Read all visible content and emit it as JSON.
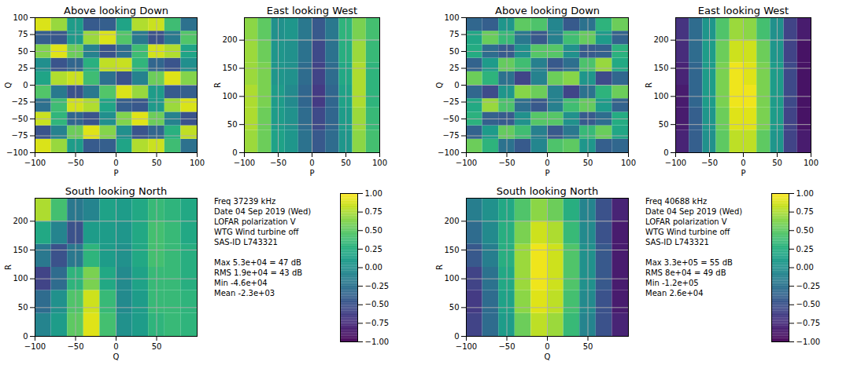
{
  "chart_data": [
    {
      "type": "heatmap",
      "info_lines": [
        "Freq 37239 kHz",
        "Date 04 Sep 2019 (Wed)",
        "LOFAR polarization V",
        "WTG Wind turbine off",
        "SAS-ID L743321"
      ],
      "stats_lines": [
        "Max 5.3e+04 = 47 dB",
        "RMS 1.9e+04 = 43 dB",
        "Min -4.6e+04",
        "Mean -2.3e+03"
      ],
      "colorbar": {
        "range": [
          -1,
          1
        ],
        "ticks": [
          {
            "value": -1,
            "label": "−1.00"
          },
          {
            "value": -0.75,
            "label": "−0.75"
          },
          {
            "value": -0.5,
            "label": "−0.50"
          },
          {
            "value": -0.25,
            "label": "−0.25"
          },
          {
            "value": 0,
            "label": "0.00"
          },
          {
            "value": 0.25,
            "label": "0.25"
          },
          {
            "value": 0.5,
            "label": "0.50"
          },
          {
            "value": 0.75,
            "label": "0.75"
          },
          {
            "value": 1,
            "label": "1.00"
          }
        ]
      },
      "panels": [
        {
          "title": "Above looking Down",
          "x_label": "P",
          "y_label": "Q",
          "xlim": [
            -100,
            100
          ],
          "ylim": [
            -100,
            100
          ],
          "xticks": [
            -100,
            -50,
            0,
            50,
            100
          ],
          "yticks": [
            -100,
            -75,
            -50,
            -25,
            0,
            25,
            50,
            75,
            100
          ],
          "grid": true,
          "cells": {
            "x_edges": [
              -100,
              -80,
              -60,
              -40,
              -20,
              0,
              20,
              40,
              60,
              80,
              100
            ],
            "y_edges": [
              -100,
              -80,
              -60,
              -40,
              -20,
              0,
              20,
              40,
              60,
              80,
              100
            ],
            "values": [
              [
                0.89,
                0.69,
                0.1,
                -0.43,
                -0.4,
                0.17,
                0.76,
                0.84,
                0.38,
                -0.26
              ],
              [
                -0.49,
                -0.12,
                0.55,
                0.9,
                0.63,
                -0.01,
                -0.48,
                -0.35,
                0.27,
                0.81
              ],
              [
                0.83,
                0.31,
                -0.35,
                -0.48,
                -0.01,
                0.62,
                0.9,
                0.55,
                -0.12,
                -0.49
              ],
              [
                -0.27,
                0.38,
                0.86,
                0.76,
                0.17,
                -0.4,
                -0.46,
                0.08,
                0.7,
                0.89
              ],
              [
                0.46,
                -0.19,
                -0.5,
                -0.19,
                0.46,
                0.89,
                0.69,
                0.1,
                -0.43,
                -0.4
              ],
              [
                0.17,
                0.76,
                0.84,
                0.38,
                -0.26,
                -0.49,
                -0.12,
                0.55,
                0.9,
                0.63
              ],
              [
                -0.01,
                -0.48,
                -0.35,
                0.27,
                0.81,
                0.83,
                0.31,
                -0.35,
                -0.48,
                -0.01
              ],
              [
                0.62,
                0.9,
                0.55,
                -0.12,
                -0.49,
                -0.27,
                0.38,
                0.86,
                0.76,
                0.17
              ],
              [
                -0.4,
                -0.46,
                0.08,
                0.7,
                0.89,
                0.46,
                -0.19,
                -0.5,
                -0.19,
                0.46
              ],
              [
                0.89,
                0.69,
                0.1,
                -0.43,
                -0.4,
                0.17,
                0.76,
                0.84,
                0.38,
                -0.26
              ]
            ]
          }
        },
        {
          "title": "East looking West",
          "x_label": "P",
          "y_label": "R",
          "xlim": [
            -100,
            100
          ],
          "ylim": [
            0,
            240
          ],
          "xticks": [
            -100,
            -50,
            0,
            50,
            100
          ],
          "yticks": [
            0,
            50,
            100,
            150,
            200
          ],
          "grid": true,
          "cells": {
            "x_edges": [
              -100,
              -80,
              -60,
              -40,
              -20,
              0,
              20,
              40,
              60,
              80,
              100
            ],
            "y_edges": [
              0,
              40,
              80,
              120,
              160,
              200,
              240
            ],
            "values": [
              [
                0.7,
                0.55,
                0.15,
                0.05,
                -0.25,
                -0.45,
                -0.3,
                0.05,
                0.65,
                0.4
              ],
              [
                0.75,
                0.55,
                0.1,
                0.0,
                -0.3,
                -0.55,
                -0.35,
                0.1,
                0.7,
                0.35
              ],
              [
                0.75,
                0.6,
                0.1,
                -0.05,
                -0.35,
                -0.65,
                -0.35,
                0.15,
                0.75,
                0.3
              ],
              [
                0.7,
                0.6,
                0.05,
                0.0,
                -0.3,
                -0.6,
                -0.3,
                0.2,
                0.75,
                0.3
              ],
              [
                0.7,
                0.55,
                0.05,
                0.0,
                -0.25,
                -0.55,
                -0.25,
                0.25,
                0.7,
                0.35
              ],
              [
                0.65,
                0.5,
                0.0,
                0.05,
                -0.2,
                -0.45,
                -0.2,
                0.3,
                0.6,
                0.4
              ]
            ]
          }
        },
        {
          "title": "South looking North",
          "x_label": "Q",
          "y_label": "R",
          "xlim": [
            -100,
            100
          ],
          "ylim": [
            0,
            240
          ],
          "xticks": [
            -100,
            -50,
            0,
            50
          ],
          "yticks": [
            0,
            50,
            100,
            150,
            200
          ],
          "grid": true,
          "cells": {
            "x_edges": [
              -100,
              -80,
              -60,
              -40,
              -20,
              0,
              20,
              40,
              60,
              80,
              100
            ],
            "y_edges": [
              0,
              40,
              80,
              120,
              160,
              200,
              240
            ],
            "values": [
              [
                -0.1,
                0.1,
                0.5,
                0.9,
                0.4,
                0.0,
                0.1,
                0.3,
                0.35,
                0.3
              ],
              [
                -0.3,
                0.0,
                0.45,
                0.85,
                0.35,
                -0.05,
                0.1,
                0.35,
                0.35,
                0.3
              ],
              [
                -0.6,
                -0.3,
                0.3,
                0.6,
                0.2,
                -0.05,
                0.15,
                0.35,
                0.35,
                0.25
              ],
              [
                -0.2,
                -0.5,
                -0.2,
                0.3,
                0.1,
                0.0,
                0.2,
                0.4,
                0.35,
                0.25
              ],
              [
                0.2,
                -0.1,
                -0.5,
                0.1,
                0.1,
                0.05,
                0.2,
                0.4,
                0.35,
                0.2
              ],
              [
                0.75,
                0.4,
                -0.2,
                -0.1,
                0.15,
                0.1,
                0.2,
                0.35,
                0.3,
                0.2
              ]
            ]
          }
        }
      ]
    },
    {
      "type": "heatmap",
      "info_lines": [
        "Freq 40688 kHz",
        "Date 04 Sep 2019 (Wed)",
        "LOFAR polarization V",
        "WTG Wind turbine off",
        "SAS-ID L743321"
      ],
      "stats_lines": [
        "Max 3.3e+05 = 55 dB",
        "RMS 8e+04 = 49 dB",
        "Min -1.2e+05",
        "Mean 2.6e+04"
      ],
      "colorbar": {
        "range": [
          -1,
          1
        ],
        "ticks": [
          {
            "value": -1,
            "label": "−1.00"
          },
          {
            "value": -0.75,
            "label": "−0.75"
          },
          {
            "value": -0.5,
            "label": "−0.50"
          },
          {
            "value": -0.25,
            "label": "−0.25"
          },
          {
            "value": 0,
            "label": "0.00"
          },
          {
            "value": 0.25,
            "label": "0.25"
          },
          {
            "value": 0.5,
            "label": "0.50"
          },
          {
            "value": 0.75,
            "label": "0.75"
          },
          {
            "value": 1,
            "label": "1.00"
          }
        ]
      },
      "panels": [
        {
          "title": "Above looking Down",
          "x_label": "P",
          "y_label": "Q",
          "xlim": [
            -100,
            100
          ],
          "ylim": [
            -100,
            100
          ],
          "xticks": [
            -100,
            -50,
            0,
            50,
            100
          ],
          "yticks": [
            -100,
            -75,
            -50,
            -25,
            0,
            25,
            50,
            75,
            100
          ],
          "grid": true,
          "cells": {
            "x_edges": [
              -100,
              -80,
              -60,
              -40,
              -20,
              0,
              20,
              40,
              60,
              80,
              100
            ],
            "y_edges": [
              -100,
              -80,
              -60,
              -40,
              -20,
              0,
              20,
              40,
              60,
              80,
              100
            ],
            "values": [
              [
                0.55,
                0.29,
                -0.25,
                -0.44,
                -0.08,
                0.44,
                0.5,
                0.05,
                -0.4,
                -0.34
              ],
              [
                -0.37,
                0.09,
                0.53,
                0.39,
                -0.14,
                -0.45,
                -0.2,
                0.35,
                0.54,
                0.18
              ],
              [
                0.28,
                -0.39,
                -0.43,
                0.0,
                0.47,
                0.47,
                0.0,
                -0.43,
                -0.29,
                0.23
              ],
              [
                0.21,
                0.69,
                0.43,
                -0.28,
                -0.45,
                -0.14,
                0.39,
                0.53,
                0.09,
                -0.37
              ],
              [
                -0.34,
                -0.54,
                0.05,
                0.64,
                0.55,
                -0.11,
                -0.59,
                -0.25,
                0.29,
                0.55
              ],
              [
                0.55,
                0.29,
                -0.25,
                -0.59,
                -0.11,
                0.55,
                0.64,
                0.05,
                -0.54,
                -0.34
              ],
              [
                -0.37,
                0.09,
                0.53,
                0.39,
                -0.14,
                -0.45,
                -0.28,
                0.43,
                0.69,
                0.21
              ],
              [
                0.23,
                -0.29,
                -0.43,
                0.0,
                0.47,
                0.47,
                0.0,
                -0.43,
                -0.39,
                0.28
              ],
              [
                0.18,
                0.54,
                0.35,
                -0.2,
                -0.45,
                -0.14,
                0.39,
                0.53,
                0.09,
                -0.37
              ],
              [
                -0.34,
                -0.4,
                0.05,
                0.5,
                0.44,
                -0.08,
                -0.44,
                -0.25,
                0.29,
                0.55
              ]
            ]
          }
        },
        {
          "title": "East looking West",
          "x_label": "P",
          "y_label": "R",
          "xlim": [
            -100,
            100
          ],
          "ylim": [
            0,
            240
          ],
          "xticks": [
            -100,
            -50,
            0,
            50,
            100
          ],
          "yticks": [
            0,
            50,
            100,
            150,
            200
          ],
          "grid": true,
          "cells": {
            "x_edges": [
              -100,
              -80,
              -60,
              -40,
              -20,
              0,
              20,
              40,
              60,
              80,
              100
            ],
            "y_edges": [
              0,
              40,
              80,
              120,
              160,
              200,
              240
            ],
            "values": [
              [
                -0.8,
                -0.4,
                0.0,
                0.5,
                0.8,
                0.8,
                0.5,
                0.05,
                -0.6,
                -0.85
              ],
              [
                -0.85,
                -0.4,
                0.05,
                0.55,
                0.9,
                0.9,
                0.6,
                0.1,
                -0.6,
                -0.9
              ],
              [
                -0.85,
                -0.35,
                0.1,
                0.6,
                0.95,
                0.95,
                0.6,
                0.1,
                -0.55,
                -0.9
              ],
              [
                -0.8,
                -0.35,
                0.1,
                0.6,
                0.95,
                0.9,
                0.6,
                0.1,
                -0.55,
                -0.9
              ],
              [
                -0.75,
                -0.3,
                0.1,
                0.55,
                0.85,
                0.85,
                0.55,
                0.05,
                -0.6,
                -0.9
              ],
              [
                -0.7,
                -0.3,
                0.05,
                0.45,
                0.7,
                0.65,
                0.4,
                0.0,
                -0.6,
                -0.85
              ]
            ]
          }
        },
        {
          "title": "South looking North",
          "x_label": "Q",
          "y_label": "R",
          "xlim": [
            -100,
            100
          ],
          "ylim": [
            0,
            240
          ],
          "xticks": [
            -100,
            -50,
            0,
            50
          ],
          "yticks": [
            0,
            50,
            100,
            150,
            200
          ],
          "grid": true,
          "cells": {
            "x_edges": [
              -100,
              -80,
              -60,
              -40,
              -20,
              0,
              20,
              40,
              60,
              80,
              100
            ],
            "y_edges": [
              0,
              40,
              80,
              120,
              160,
              200,
              240
            ],
            "values": [
              [
                -0.6,
                -0.3,
                0.1,
                0.55,
                0.8,
                0.7,
                0.35,
                -0.1,
                -0.5,
                -0.8
              ],
              [
                -0.65,
                -0.3,
                0.15,
                0.65,
                0.9,
                0.8,
                0.4,
                -0.05,
                -0.5,
                -0.85
              ],
              [
                -0.6,
                -0.25,
                0.2,
                0.7,
                0.95,
                0.85,
                0.45,
                0.0,
                -0.45,
                -0.85
              ],
              [
                -0.45,
                -0.15,
                0.25,
                0.7,
                0.95,
                0.85,
                0.45,
                0.0,
                -0.45,
                -0.85
              ],
              [
                -0.3,
                -0.05,
                0.25,
                0.6,
                0.85,
                0.75,
                0.35,
                -0.05,
                -0.5,
                -0.85
              ],
              [
                -0.15,
                0.0,
                0.2,
                0.45,
                0.65,
                0.55,
                0.25,
                -0.1,
                -0.5,
                -0.8
              ]
            ]
          }
        }
      ]
    }
  ]
}
